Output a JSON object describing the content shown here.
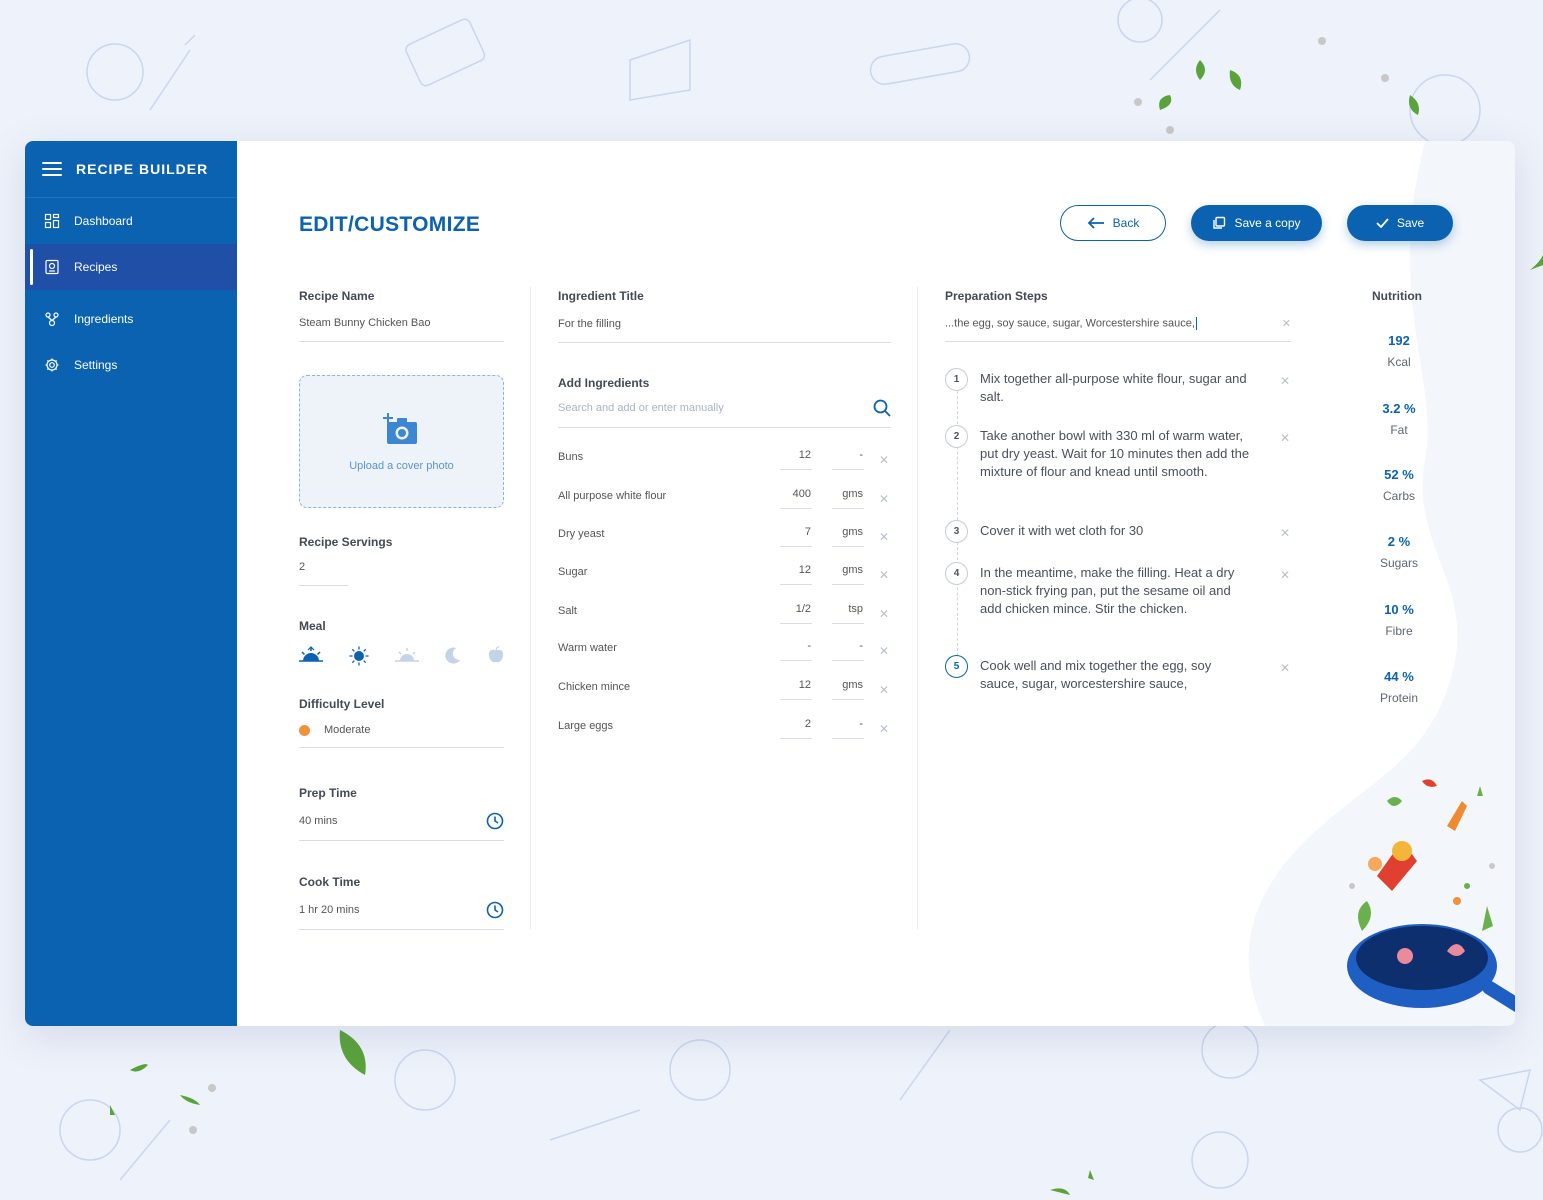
{
  "app": {
    "title": "RECIPE BUILDER"
  },
  "sidebar": {
    "items": [
      {
        "label": "Dashboard",
        "icon": "grid-icon"
      },
      {
        "label": "Recipes",
        "icon": "recipe-book-icon",
        "active": true
      },
      {
        "label": "Ingredients",
        "icon": "ingredients-icon"
      },
      {
        "label": "Settings",
        "icon": "gear-icon"
      }
    ]
  },
  "header": {
    "title": "EDIT/CUSTOMIZE",
    "back_label": "Back",
    "copy_label": "Save a copy",
    "save_label": "Save"
  },
  "details": {
    "recipe_name_label": "Recipe Name",
    "recipe_name": "Steam Bunny Chicken Bao",
    "upload_label": "Upload a cover photo",
    "servings_label": "Recipe Servings",
    "servings": "2",
    "meal_label": "Meal",
    "meal_options": [
      "breakfast-icon",
      "lunch-icon",
      "evening-icon",
      "dinner-icon",
      "snack-icon"
    ],
    "meal_selected": "breakfast",
    "difficulty_label": "Difficulty Level",
    "difficulty": "Moderate",
    "prep_label": "Prep Time",
    "prep_time": "40 mins",
    "cook_label": "Cook Time",
    "cook_time": "1 hr 20 mins"
  },
  "ingredients": {
    "title_label": "Ingredient Title",
    "title_value": "For the filling",
    "add_label": "Add Ingredients",
    "search_placeholder": "Search and add or enter manually",
    "items": [
      {
        "name": "Buns",
        "qty": "12",
        "unit": "-"
      },
      {
        "name": "All purpose white flour",
        "qty": "400",
        "unit": "gms"
      },
      {
        "name": "Dry yeast",
        "qty": "7",
        "unit": "gms"
      },
      {
        "name": "Sugar",
        "qty": "12",
        "unit": "gms"
      },
      {
        "name": "Salt",
        "qty": "1/2",
        "unit": "tsp"
      },
      {
        "name": "Warm water",
        "qty": "-",
        "unit": "-"
      },
      {
        "name": "Chicken mince",
        "qty": "12",
        "unit": "gms"
      },
      {
        "name": "Large eggs",
        "qty": "2",
        "unit": "-"
      }
    ]
  },
  "steps": {
    "label": "Preparation Steps",
    "input_value": "...the egg, soy sauce, sugar, Worcestershire sauce,",
    "items": [
      {
        "num": "1",
        "text": "Mix together all-purpose white flour, sugar and salt."
      },
      {
        "num": "2",
        "text": "Take another bowl with 330 ml of warm water, put dry yeast. Wait for 10 minutes then add the mixture of flour and knead until smooth."
      },
      {
        "num": "3",
        "text": "Cover it with wet cloth for 30"
      },
      {
        "num": "4",
        "text": "In the meantime, make the filling. Heat a dry non-stick frying pan, put the sesame oil and add chicken mince. Stir the chicken."
      },
      {
        "num": "5",
        "text": "Cook well and mix together the egg, soy sauce, sugar, worcestershire sauce,"
      }
    ]
  },
  "nutrition": {
    "title": "Nutrition",
    "items": [
      {
        "value": "192",
        "label": "Kcal"
      },
      {
        "value": "3.2 %",
        "label": "Fat"
      },
      {
        "value": "52 %",
        "label": "Carbs"
      },
      {
        "value": "2 %",
        "label": "Sugars"
      },
      {
        "value": "10 %",
        "label": "Fibre"
      },
      {
        "value": "44 %",
        "label": "Protein"
      }
    ]
  },
  "colors": {
    "primary": "#0b62b0",
    "sidebar_active": "#1f4fa6",
    "difficulty_moderate": "#f0923a",
    "background": "#eef2fa"
  }
}
